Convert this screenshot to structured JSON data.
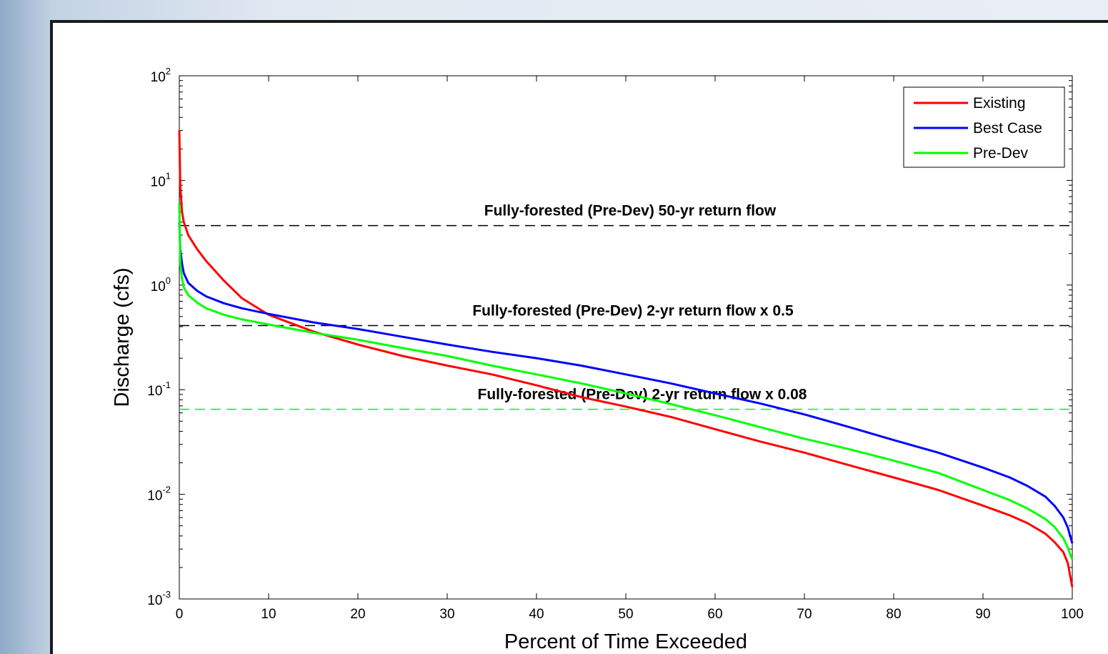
{
  "chart_data": {
    "type": "line",
    "xlabel": "Percent of Time Exceeded",
    "ylabel": "Discharge (cfs)",
    "xlim": [
      0,
      100
    ],
    "ylim": [
      0.001,
      100
    ],
    "yscale": "log",
    "grid": false,
    "legend_position": "top-right",
    "x_ticks": [
      "0",
      "10",
      "20",
      "30",
      "40",
      "50",
      "60",
      "70",
      "80",
      "90",
      "100"
    ],
    "y_ticks": [
      {
        "base": "10",
        "exp": "-3"
      },
      {
        "base": "10",
        "exp": "-2"
      },
      {
        "base": "10",
        "exp": "-1"
      },
      {
        "base": "10",
        "exp": "0"
      },
      {
        "base": "10",
        "exp": "1"
      },
      {
        "base": "10",
        "exp": "2"
      }
    ],
    "series": [
      {
        "name": "Existing",
        "color": "#ff0000",
        "x": [
          0,
          0.1,
          0.3,
          0.5,
          1,
          2,
          3,
          5,
          7,
          10,
          15,
          20,
          25,
          30,
          35,
          40,
          45,
          50,
          55,
          60,
          65,
          70,
          75,
          80,
          85,
          90,
          93,
          95,
          97,
          98,
          99,
          99.5,
          99.8,
          100
        ],
        "y": [
          30,
          9,
          5,
          4,
          3.0,
          2.2,
          1.7,
          1.1,
          0.75,
          0.52,
          0.36,
          0.27,
          0.21,
          0.17,
          0.14,
          0.11,
          0.085,
          0.069,
          0.055,
          0.042,
          0.032,
          0.025,
          0.019,
          0.0145,
          0.011,
          0.0078,
          0.0063,
          0.0053,
          0.0042,
          0.0035,
          0.0028,
          0.0022,
          0.0016,
          0.0013
        ]
      },
      {
        "name": "Best Case",
        "color": "#0000ff",
        "x": [
          0,
          0.1,
          0.3,
          0.5,
          1,
          2,
          3,
          5,
          7,
          10,
          15,
          20,
          25,
          30,
          35,
          40,
          45,
          50,
          55,
          60,
          65,
          70,
          75,
          80,
          85,
          90,
          93,
          95,
          97,
          98,
          99,
          99.5,
          99.8,
          100
        ],
        "y": [
          4,
          2.2,
          1.6,
          1.3,
          1.05,
          0.88,
          0.78,
          0.67,
          0.6,
          0.53,
          0.44,
          0.38,
          0.32,
          0.27,
          0.23,
          0.2,
          0.17,
          0.14,
          0.115,
          0.092,
          0.074,
          0.058,
          0.044,
          0.033,
          0.025,
          0.018,
          0.0145,
          0.012,
          0.0095,
          0.0078,
          0.006,
          0.0048,
          0.0039,
          0.0034
        ]
      },
      {
        "name": "Pre-Dev",
        "color": "#00ff00",
        "x": [
          0,
          0.1,
          0.3,
          0.5,
          1,
          2,
          3,
          5,
          7,
          10,
          15,
          20,
          25,
          30,
          35,
          40,
          45,
          50,
          55,
          60,
          65,
          70,
          75,
          80,
          85,
          90,
          93,
          95,
          97,
          98,
          99,
          99.5,
          99.8,
          100
        ],
        "y": [
          6,
          1.6,
          1.15,
          0.95,
          0.8,
          0.68,
          0.6,
          0.52,
          0.47,
          0.42,
          0.35,
          0.3,
          0.25,
          0.21,
          0.17,
          0.14,
          0.115,
          0.092,
          0.073,
          0.057,
          0.044,
          0.034,
          0.027,
          0.021,
          0.016,
          0.011,
          0.0088,
          0.0073,
          0.0058,
          0.0049,
          0.0038,
          0.0031,
          0.0026,
          0.0024
        ]
      }
    ],
    "reference_lines": [
      {
        "label": "Fully-forested (Pre-Dev) 50-yr return flow",
        "y": 3.7,
        "color": "#000000",
        "dash": true
      },
      {
        "label": "Fully-forested (Pre-Dev) 2-yr return flow x 0.5",
        "y": 0.41,
        "color": "#000000",
        "dash": true
      },
      {
        "label": "Fully-forested (Pre-Dev) 2-yr return flow x 0.08",
        "y": 0.065,
        "color": "#00ff00",
        "dash": true
      }
    ]
  }
}
